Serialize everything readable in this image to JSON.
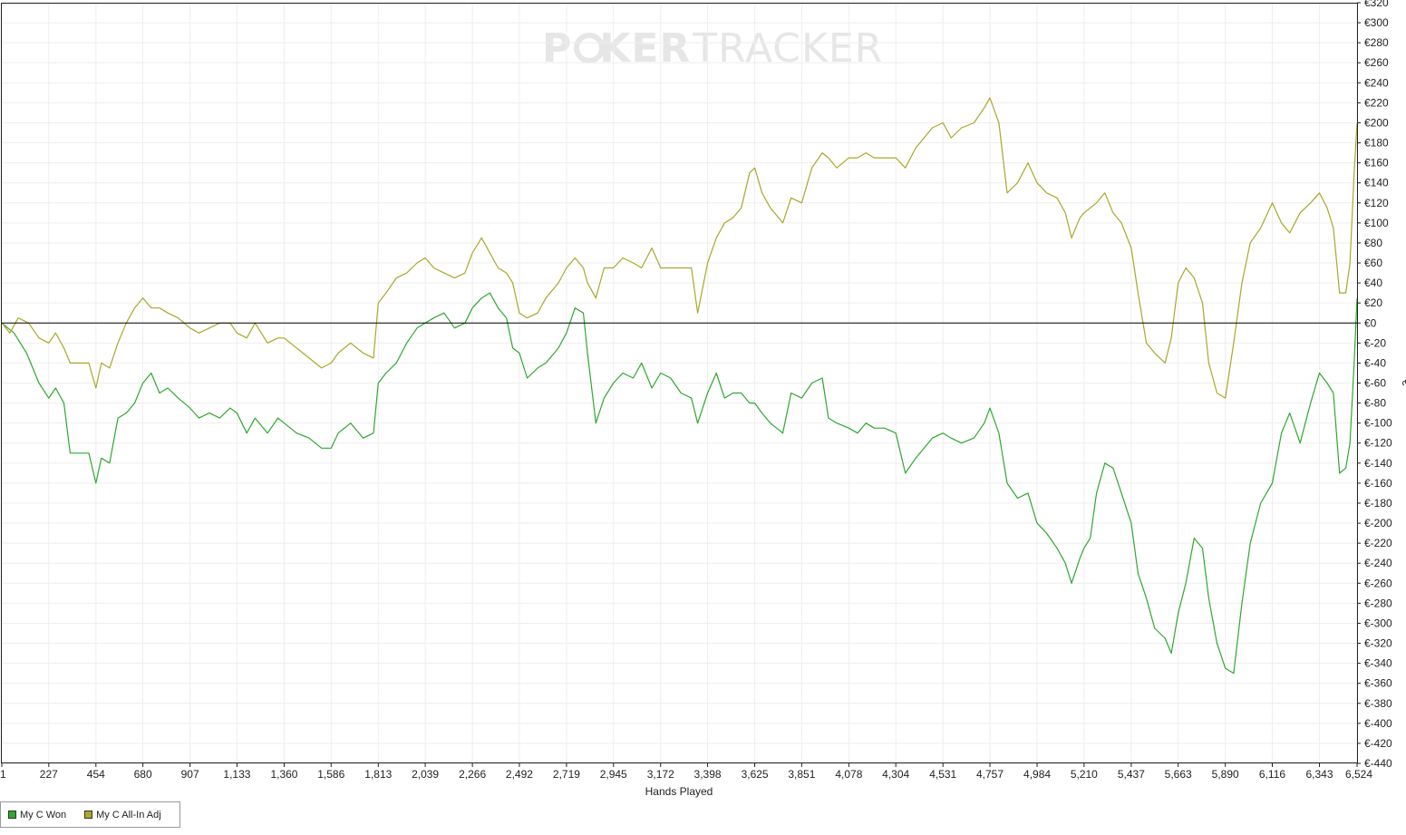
{
  "chart_data": {
    "type": "line",
    "title": "",
    "watermark": {
      "part1": "P",
      "part2": "KER",
      "part3": "TRACKER"
    },
    "xlabel": "Hands Played",
    "ylabel": "€",
    "xlim": [
      1,
      6524
    ],
    "ylim": [
      -440,
      320
    ],
    "x_ticks": [
      "1",
      "227",
      "454",
      "680",
      "907",
      "1,133",
      "1,360",
      "1,586",
      "1,813",
      "2,039",
      "2,266",
      "2,492",
      "2,719",
      "2,945",
      "3,172",
      "3,398",
      "3,625",
      "3,851",
      "4,078",
      "4,304",
      "4,531",
      "4,757",
      "4,984",
      "5,210",
      "5,437",
      "5,663",
      "5,890",
      "6,116",
      "6,343",
      "6,524"
    ],
    "y_ticks": [
      "€320",
      "€300",
      "€280",
      "€260",
      "€240",
      "€220",
      "€200",
      "€180",
      "€160",
      "€140",
      "€120",
      "€100",
      "€80",
      "€60",
      "€40",
      "€20",
      "€0",
      "€-20",
      "€-40",
      "€-60",
      "€-80",
      "€-100",
      "€-120",
      "€-140",
      "€-160",
      "€-180",
      "€-200",
      "€-220",
      "€-240",
      "€-260",
      "€-280",
      "€-300",
      "€-320",
      "€-340",
      "€-360",
      "€-380",
      "€-400",
      "€-420",
      "€-440"
    ],
    "grid": true,
    "zero_line": true,
    "legend_position": "bottom-left",
    "series": [
      {
        "name": "My C Won",
        "color": "#2ea82e",
        "points": [
          [
            1,
            0
          ],
          [
            60,
            -10
          ],
          [
            120,
            -30
          ],
          [
            180,
            -60
          ],
          [
            227,
            -75
          ],
          [
            260,
            -65
          ],
          [
            300,
            -80
          ],
          [
            330,
            -130
          ],
          [
            380,
            -130
          ],
          [
            420,
            -130
          ],
          [
            454,
            -160
          ],
          [
            480,
            -135
          ],
          [
            520,
            -140
          ],
          [
            560,
            -95
          ],
          [
            600,
            -90
          ],
          [
            640,
            -80
          ],
          [
            680,
            -60
          ],
          [
            720,
            -50
          ],
          [
            760,
            -70
          ],
          [
            800,
            -65
          ],
          [
            850,
            -75
          ],
          [
            907,
            -85
          ],
          [
            950,
            -95
          ],
          [
            1000,
            -90
          ],
          [
            1050,
            -95
          ],
          [
            1100,
            -85
          ],
          [
            1133,
            -90
          ],
          [
            1180,
            -110
          ],
          [
            1220,
            -95
          ],
          [
            1280,
            -110
          ],
          [
            1330,
            -95
          ],
          [
            1360,
            -100
          ],
          [
            1420,
            -110
          ],
          [
            1480,
            -115
          ],
          [
            1540,
            -125
          ],
          [
            1586,
            -125
          ],
          [
            1620,
            -110
          ],
          [
            1680,
            -100
          ],
          [
            1740,
            -115
          ],
          [
            1790,
            -110
          ],
          [
            1813,
            -60
          ],
          [
            1850,
            -50
          ],
          [
            1900,
            -40
          ],
          [
            1950,
            -20
          ],
          [
            2000,
            -5
          ],
          [
            2039,
            0
          ],
          [
            2080,
            5
          ],
          [
            2130,
            10
          ],
          [
            2180,
            -5
          ],
          [
            2230,
            0
          ],
          [
            2266,
            15
          ],
          [
            2310,
            25
          ],
          [
            2350,
            30
          ],
          [
            2390,
            15
          ],
          [
            2430,
            5
          ],
          [
            2460,
            -25
          ],
          [
            2492,
            -30
          ],
          [
            2530,
            -55
          ],
          [
            2580,
            -45
          ],
          [
            2620,
            -40
          ],
          [
            2680,
            -25
          ],
          [
            2719,
            -10
          ],
          [
            2760,
            15
          ],
          [
            2800,
            10
          ],
          [
            2820,
            -30
          ],
          [
            2860,
            -100
          ],
          [
            2900,
            -75
          ],
          [
            2945,
            -60
          ],
          [
            2990,
            -50
          ],
          [
            3040,
            -55
          ],
          [
            3080,
            -40
          ],
          [
            3130,
            -65
          ],
          [
            3172,
            -50
          ],
          [
            3220,
            -55
          ],
          [
            3270,
            -70
          ],
          [
            3320,
            -75
          ],
          [
            3350,
            -100
          ],
          [
            3398,
            -70
          ],
          [
            3440,
            -50
          ],
          [
            3480,
            -75
          ],
          [
            3520,
            -70
          ],
          [
            3560,
            -70
          ],
          [
            3600,
            -80
          ],
          [
            3625,
            -80
          ],
          [
            3660,
            -90
          ],
          [
            3700,
            -100
          ],
          [
            3760,
            -110
          ],
          [
            3800,
            -70
          ],
          [
            3851,
            -75
          ],
          [
            3900,
            -60
          ],
          [
            3950,
            -55
          ],
          [
            3980,
            -95
          ],
          [
            4020,
            -100
          ],
          [
            4078,
            -105
          ],
          [
            4120,
            -110
          ],
          [
            4160,
            -100
          ],
          [
            4200,
            -105
          ],
          [
            4250,
            -105
          ],
          [
            4304,
            -110
          ],
          [
            4350,
            -150
          ],
          [
            4400,
            -135
          ],
          [
            4440,
            -125
          ],
          [
            4480,
            -115
          ],
          [
            4531,
            -110
          ],
          [
            4570,
            -115
          ],
          [
            4620,
            -120
          ],
          [
            4680,
            -115
          ],
          [
            4730,
            -100
          ],
          [
            4757,
            -85
          ],
          [
            4800,
            -110
          ],
          [
            4840,
            -160
          ],
          [
            4890,
            -175
          ],
          [
            4940,
            -170
          ],
          [
            4984,
            -200
          ],
          [
            5030,
            -210
          ],
          [
            5080,
            -225
          ],
          [
            5120,
            -240
          ],
          [
            5150,
            -260
          ],
          [
            5190,
            -235
          ],
          [
            5210,
            -225
          ],
          [
            5240,
            -215
          ],
          [
            5270,
            -170
          ],
          [
            5310,
            -140
          ],
          [
            5350,
            -145
          ],
          [
            5390,
            -170
          ],
          [
            5437,
            -200
          ],
          [
            5470,
            -250
          ],
          [
            5510,
            -275
          ],
          [
            5550,
            -305
          ],
          [
            5600,
            -315
          ],
          [
            5630,
            -330
          ],
          [
            5663,
            -290
          ],
          [
            5700,
            -260
          ],
          [
            5740,
            -215
          ],
          [
            5780,
            -225
          ],
          [
            5810,
            -275
          ],
          [
            5850,
            -320
          ],
          [
            5890,
            -345
          ],
          [
            5930,
            -350
          ],
          [
            5970,
            -280
          ],
          [
            6010,
            -220
          ],
          [
            6060,
            -180
          ],
          [
            6116,
            -160
          ],
          [
            6160,
            -110
          ],
          [
            6200,
            -90
          ],
          [
            6250,
            -120
          ],
          [
            6300,
            -80
          ],
          [
            6343,
            -50
          ],
          [
            6380,
            -60
          ],
          [
            6410,
            -70
          ],
          [
            6440,
            -150
          ],
          [
            6470,
            -145
          ],
          [
            6490,
            -120
          ],
          [
            6510,
            -40
          ],
          [
            6524,
            25
          ]
        ]
      },
      {
        "name": "My C All-In Adj",
        "color": "#a9a82a",
        "points": [
          [
            1,
            0
          ],
          [
            40,
            -10
          ],
          [
            80,
            5
          ],
          [
            130,
            0
          ],
          [
            180,
            -15
          ],
          [
            227,
            -20
          ],
          [
            260,
            -10
          ],
          [
            300,
            -25
          ],
          [
            330,
            -40
          ],
          [
            380,
            -40
          ],
          [
            420,
            -40
          ],
          [
            454,
            -65
          ],
          [
            480,
            -40
          ],
          [
            520,
            -45
          ],
          [
            560,
            -20
          ],
          [
            600,
            0
          ],
          [
            640,
            15
          ],
          [
            680,
            25
          ],
          [
            720,
            15
          ],
          [
            760,
            15
          ],
          [
            800,
            10
          ],
          [
            850,
            5
          ],
          [
            907,
            -5
          ],
          [
            950,
            -10
          ],
          [
            1000,
            -5
          ],
          [
            1050,
            0
          ],
          [
            1100,
            0
          ],
          [
            1133,
            -10
          ],
          [
            1180,
            -15
          ],
          [
            1220,
            0
          ],
          [
            1280,
            -20
          ],
          [
            1330,
            -15
          ],
          [
            1360,
            -15
          ],
          [
            1420,
            -25
          ],
          [
            1480,
            -35
          ],
          [
            1540,
            -45
          ],
          [
            1586,
            -40
          ],
          [
            1620,
            -30
          ],
          [
            1680,
            -20
          ],
          [
            1740,
            -30
          ],
          [
            1790,
            -35
          ],
          [
            1813,
            20
          ],
          [
            1850,
            30
          ],
          [
            1900,
            45
          ],
          [
            1950,
            50
          ],
          [
            2000,
            60
          ],
          [
            2039,
            65
          ],
          [
            2080,
            55
          ],
          [
            2130,
            50
          ],
          [
            2180,
            45
          ],
          [
            2230,
            50
          ],
          [
            2266,
            70
          ],
          [
            2310,
            85
          ],
          [
            2350,
            70
          ],
          [
            2390,
            55
          ],
          [
            2430,
            50
          ],
          [
            2460,
            40
          ],
          [
            2492,
            10
          ],
          [
            2530,
            5
          ],
          [
            2580,
            10
          ],
          [
            2620,
            25
          ],
          [
            2680,
            40
          ],
          [
            2719,
            55
          ],
          [
            2760,
            65
          ],
          [
            2800,
            55
          ],
          [
            2820,
            40
          ],
          [
            2860,
            25
          ],
          [
            2900,
            55
          ],
          [
            2945,
            55
          ],
          [
            2990,
            65
          ],
          [
            3040,
            60
          ],
          [
            3080,
            55
          ],
          [
            3130,
            75
          ],
          [
            3172,
            55
          ],
          [
            3220,
            55
          ],
          [
            3270,
            55
          ],
          [
            3320,
            55
          ],
          [
            3350,
            10
          ],
          [
            3398,
            60
          ],
          [
            3440,
            85
          ],
          [
            3480,
            100
          ],
          [
            3520,
            105
          ],
          [
            3560,
            115
          ],
          [
            3600,
            150
          ],
          [
            3625,
            155
          ],
          [
            3660,
            130
          ],
          [
            3700,
            115
          ],
          [
            3760,
            100
          ],
          [
            3800,
            125
          ],
          [
            3851,
            120
          ],
          [
            3900,
            155
          ],
          [
            3950,
            170
          ],
          [
            3980,
            165
          ],
          [
            4020,
            155
          ],
          [
            4078,
            165
          ],
          [
            4120,
            165
          ],
          [
            4160,
            170
          ],
          [
            4200,
            165
          ],
          [
            4250,
            165
          ],
          [
            4304,
            165
          ],
          [
            4350,
            155
          ],
          [
            4400,
            175
          ],
          [
            4440,
            185
          ],
          [
            4480,
            195
          ],
          [
            4531,
            200
          ],
          [
            4570,
            185
          ],
          [
            4620,
            195
          ],
          [
            4680,
            200
          ],
          [
            4730,
            215
          ],
          [
            4757,
            225
          ],
          [
            4800,
            200
          ],
          [
            4840,
            130
          ],
          [
            4890,
            140
          ],
          [
            4940,
            160
          ],
          [
            4984,
            140
          ],
          [
            5030,
            130
          ],
          [
            5080,
            125
          ],
          [
            5120,
            110
          ],
          [
            5150,
            85
          ],
          [
            5190,
            105
          ],
          [
            5210,
            110
          ],
          [
            5240,
            115
          ],
          [
            5270,
            120
          ],
          [
            5310,
            130
          ],
          [
            5350,
            110
          ],
          [
            5390,
            100
          ],
          [
            5437,
            75
          ],
          [
            5470,
            30
          ],
          [
            5510,
            -20
          ],
          [
            5550,
            -30
          ],
          [
            5600,
            -40
          ],
          [
            5630,
            -15
          ],
          [
            5663,
            40
          ],
          [
            5700,
            55
          ],
          [
            5740,
            45
          ],
          [
            5780,
            20
          ],
          [
            5810,
            -40
          ],
          [
            5850,
            -70
          ],
          [
            5890,
            -75
          ],
          [
            5930,
            -20
          ],
          [
            5970,
            40
          ],
          [
            6010,
            80
          ],
          [
            6060,
            95
          ],
          [
            6116,
            120
          ],
          [
            6160,
            100
          ],
          [
            6200,
            90
          ],
          [
            6250,
            110
          ],
          [
            6300,
            120
          ],
          [
            6343,
            130
          ],
          [
            6380,
            115
          ],
          [
            6410,
            95
          ],
          [
            6440,
            30
          ],
          [
            6470,
            30
          ],
          [
            6490,
            60
          ],
          [
            6510,
            150
          ],
          [
            6524,
            200
          ]
        ]
      }
    ]
  }
}
